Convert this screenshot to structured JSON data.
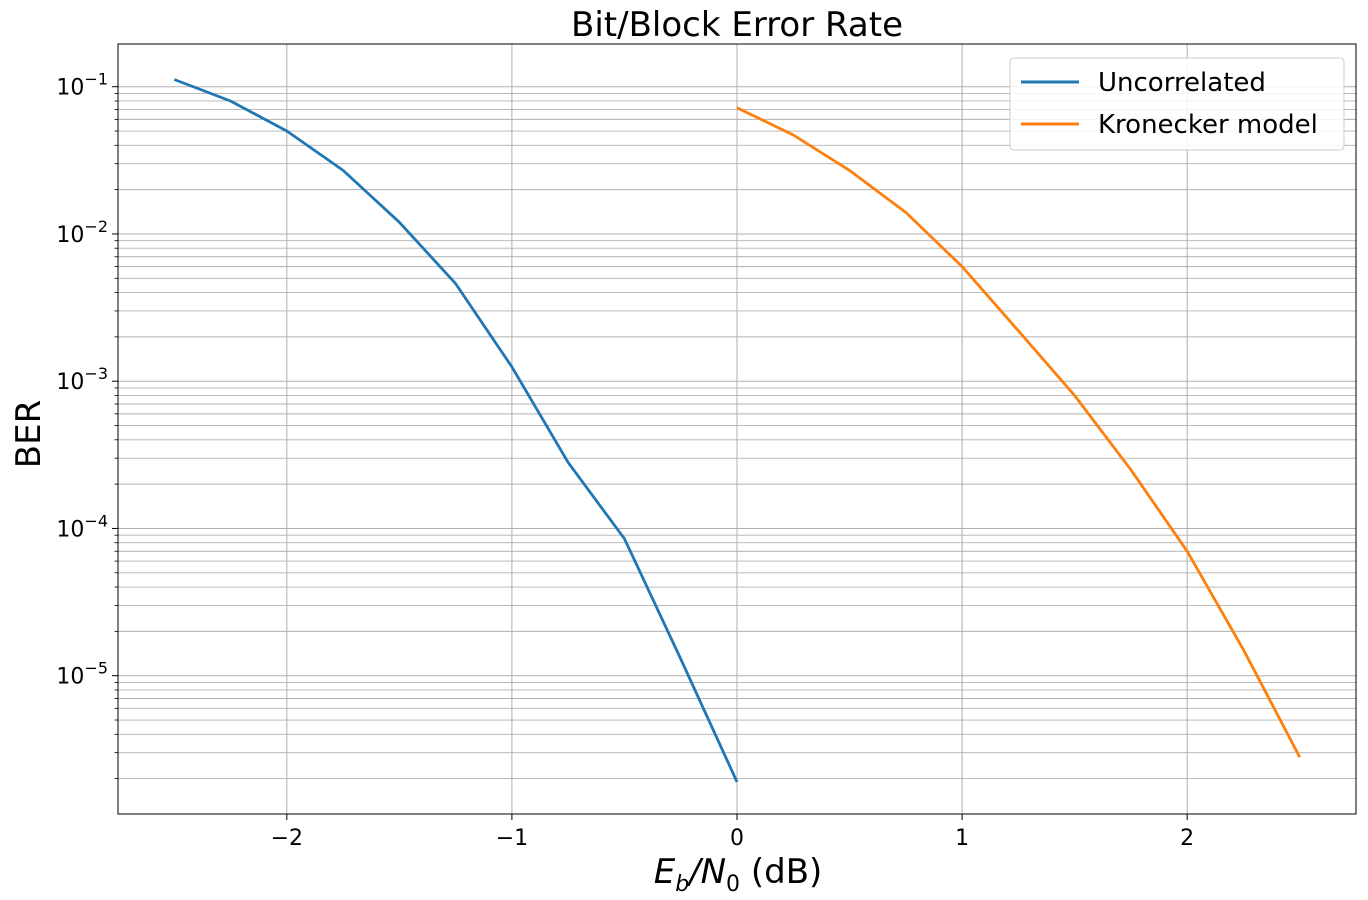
{
  "chart_data": {
    "type": "line",
    "title": "Bit/Block Error Rate",
    "xlabel": {
      "main": "E",
      "sub1": "b",
      "slash": "/N",
      "sub2": "0",
      "unit": " (dB)"
    },
    "ylabel": "BER",
    "xlim": [
      -2.75,
      2.75
    ],
    "ylim": [
      1.15e-06,
      0.195
    ],
    "yscale": "log",
    "grid": "both",
    "legend_position": "top-right",
    "x_ticks": [
      {
        "value": -2,
        "label": "−2"
      },
      {
        "value": -1,
        "label": "−1"
      },
      {
        "value": 0,
        "label": "0"
      },
      {
        "value": 1,
        "label": "1"
      },
      {
        "value": 2,
        "label": "2"
      }
    ],
    "y_ticks": [
      {
        "value": 0.1,
        "base": "10",
        "exp": "−1"
      },
      {
        "value": 0.01,
        "base": "10",
        "exp": "−2"
      },
      {
        "value": 0.001,
        "base": "10",
        "exp": "−3"
      },
      {
        "value": 0.0001,
        "base": "10",
        "exp": "−4"
      },
      {
        "value": 1e-05,
        "base": "10",
        "exp": "−5"
      }
    ],
    "series": [
      {
        "name": "Uncorrelated",
        "color": "#1f77b4",
        "x": [
          -2.5,
          -2.25,
          -2.0,
          -1.75,
          -1.5,
          -1.25,
          -1.0,
          -0.75,
          -0.5,
          -0.25,
          0.0
        ],
        "y": [
          0.112,
          0.08,
          0.05,
          0.027,
          0.012,
          0.0046,
          0.00125,
          0.00028,
          8.5e-05,
          1.3e-05,
          1.9e-06
        ]
      },
      {
        "name": "Kronecker model",
        "color": "#ff7f0e",
        "x": [
          0.0,
          0.25,
          0.5,
          0.75,
          1.0,
          1.25,
          1.5,
          1.75,
          2.0,
          2.25,
          2.5
        ],
        "y": [
          0.072,
          0.047,
          0.027,
          0.014,
          0.006,
          0.0022,
          0.0008,
          0.00025,
          7e-05,
          1.5e-05,
          2.8e-06
        ]
      }
    ]
  }
}
